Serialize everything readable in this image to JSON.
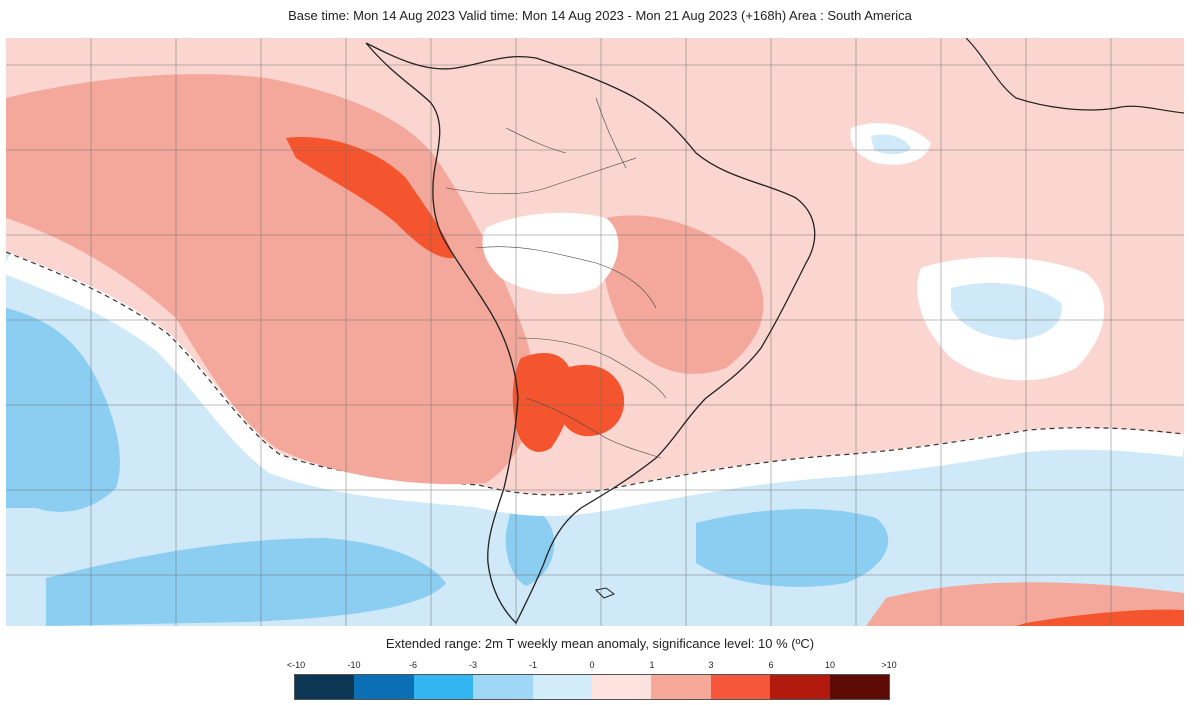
{
  "header": {
    "title": "Base time: Mon 14 Aug 2023 Valid time: Mon 14 Aug 2023 - Mon 21 Aug 2023 (+168h) Area : South America"
  },
  "legend": {
    "title": "Extended range: 2m T weekly mean anomaly, significance level: 10 % (ºC)",
    "ticks": [
      "<-10",
      "-10",
      "-6",
      "-3",
      "-1",
      "0",
      "1",
      "3",
      "6",
      "10",
      ">10"
    ],
    "colors": [
      "#0d3554",
      "#0a6fb5",
      "#33b5f2",
      "#9fd8f7",
      "#d3ecfa",
      "#fde2de",
      "#f7a898",
      "#f6563a",
      "#b11a0d",
      "#5e0b06"
    ]
  },
  "map": {
    "land_color": "#fbd6d0",
    "warm_color": "#f3a89b",
    "hot_color": "#f4552f",
    "cold_light": "#cfe9f8",
    "cold_mid": "#8ccdf2",
    "neutral": "#ffffff",
    "coast_color": "#222222"
  }
}
